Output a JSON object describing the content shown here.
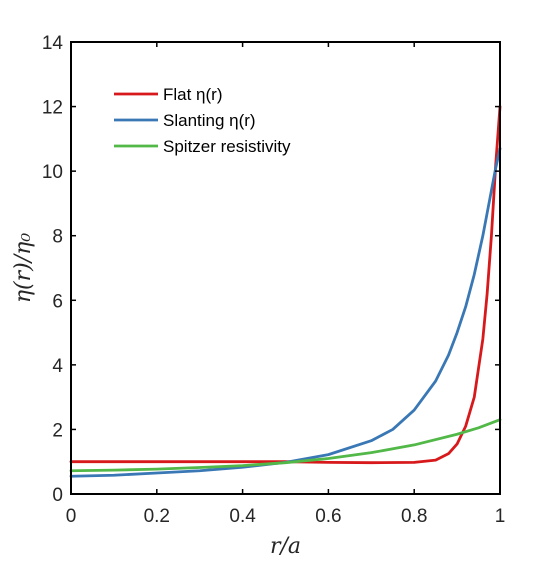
{
  "chart_data": {
    "type": "line",
    "xlabel": "r/a",
    "ylabel": "η(r)/η₀",
    "xlim": [
      0,
      1
    ],
    "ylim": [
      0,
      14
    ],
    "xticks": [
      0,
      0.2,
      0.4,
      0.6,
      0.8,
      1
    ],
    "xtick_labels": [
      "0",
      "0.2",
      "0.4",
      "0.6",
      "0.8",
      "1"
    ],
    "yticks": [
      0,
      2,
      4,
      6,
      8,
      10,
      12,
      14
    ],
    "ytick_labels": [
      "0",
      "2",
      "4",
      "6",
      "8",
      "10",
      "12",
      "14"
    ],
    "legend_position": "top-left",
    "grid": false,
    "series": [
      {
        "name": "Flat η(r)",
        "color": "#d7191c",
        "x": [
          0,
          0.1,
          0.2,
          0.3,
          0.4,
          0.5,
          0.6,
          0.7,
          0.8,
          0.85,
          0.88,
          0.9,
          0.92,
          0.94,
          0.96,
          0.97,
          0.98,
          0.99,
          1.0
        ],
        "y": [
          1.0,
          1.0,
          1.0,
          1.0,
          1.0,
          1.0,
          0.98,
          0.97,
          0.98,
          1.05,
          1.25,
          1.55,
          2.1,
          3.0,
          4.8,
          6.2,
          8.0,
          10.2,
          12.0
        ]
      },
      {
        "name": "Slanting η(r)",
        "color": "#3a78b5",
        "x": [
          0,
          0.1,
          0.2,
          0.3,
          0.4,
          0.5,
          0.6,
          0.7,
          0.75,
          0.8,
          0.85,
          0.88,
          0.9,
          0.92,
          0.94,
          0.96,
          0.97,
          0.98,
          0.99,
          1.0
        ],
        "y": [
          0.55,
          0.58,
          0.65,
          0.72,
          0.83,
          0.98,
          1.22,
          1.65,
          2.0,
          2.6,
          3.5,
          4.3,
          5.0,
          5.8,
          6.8,
          8.0,
          8.7,
          9.4,
          10.1,
          10.7
        ]
      },
      {
        "name": "Spitzer resistivity",
        "color": "#52b848",
        "x": [
          0,
          0.1,
          0.2,
          0.3,
          0.4,
          0.5,
          0.6,
          0.7,
          0.8,
          0.9,
          0.95,
          1.0
        ],
        "y": [
          0.72,
          0.74,
          0.77,
          0.82,
          0.88,
          0.97,
          1.1,
          1.28,
          1.52,
          1.85,
          2.05,
          2.3
        ]
      }
    ]
  }
}
